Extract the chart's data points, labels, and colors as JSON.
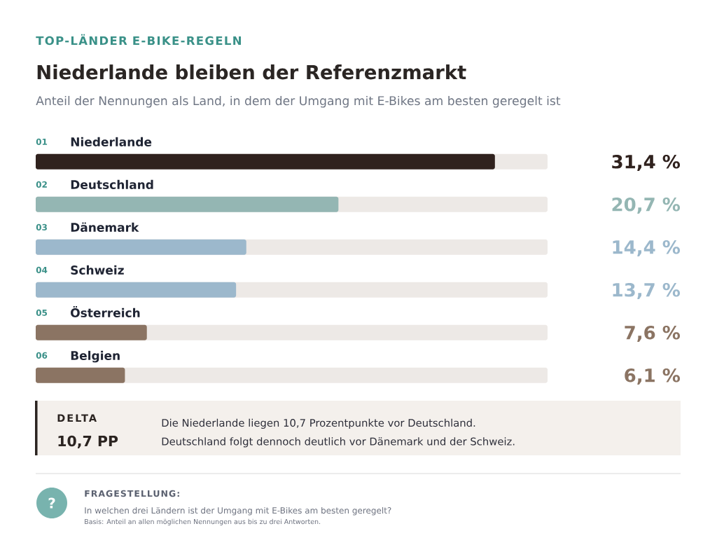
{
  "chart_data": {
    "type": "bar",
    "orientation": "horizontal",
    "title": "Niederlande bleiben der Referenzmarkt",
    "subtitle": "Anteil der Nennungen als Land, in dem der Umgang mit E-Bikes am besten geregelt ist",
    "categories": [
      "Niederlande",
      "Deutschland",
      "Dänemark",
      "Schweiz",
      "Österreich",
      "Belgien"
    ],
    "values": [
      31.4,
      20.7,
      14.4,
      13.7,
      7.6,
      6.1
    ],
    "colors": [
      "#30221e",
      "#94b6b3",
      "#9cb8cc",
      "#9cb8cc",
      "#8b7463",
      "#8b7463"
    ],
    "value_labels": [
      "31,4 %",
      "20,7 %",
      "14,4 %",
      "13,7 %",
      "7,6 %",
      "6,1 %"
    ],
    "xlim": [
      0,
      35
    ],
    "tick_labels": "y",
    "annotations": [
      "TOP-LÄNDER E-BIKE-REGELN",
      "01",
      "02",
      "03",
      "04",
      "05",
      "06",
      "DELTA",
      "10,7 PP",
      "Die Niederlande liegen 10,7 Prozentpunkte vor Deutschland.",
      "Deutschland folgt dennoch deutlich vor Dänemark und der Schweiz.",
      "?",
      "FRAGESTELLUNG:",
      "In welchen drei Ländern ist der Umgang mit E-Bikes am besten geregelt?",
      "Basis: Anteil an allen möglichen Nennungen aus bis zu drei Antworten."
    ]
  }
}
